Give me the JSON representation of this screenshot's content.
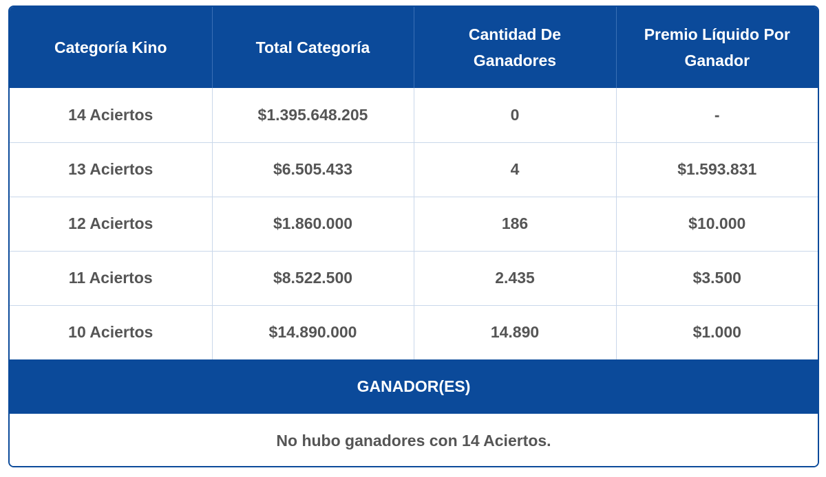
{
  "colors": {
    "header_bg": "#0b4a9a",
    "header_text": "#ffffff",
    "body_text": "#555555",
    "grid_line": "#c9d7ea"
  },
  "table": {
    "columns": [
      "Categoría Kino",
      "Total Categoría",
      "Cantidad De Ganadores",
      "Premio Líquido Por Ganador"
    ],
    "rows": [
      {
        "categoria": "14 Aciertos",
        "total": "$1.395.648.205",
        "cantidad": "0",
        "premio": "-"
      },
      {
        "categoria": "13 Aciertos",
        "total": "$6.505.433",
        "cantidad": "4",
        "premio": "$1.593.831"
      },
      {
        "categoria": "12 Aciertos",
        "total": "$1.860.000",
        "cantidad": "186",
        "premio": "$10.000"
      },
      {
        "categoria": "11 Aciertos",
        "total": "$8.522.500",
        "cantidad": "2.435",
        "premio": "$3.500"
      },
      {
        "categoria": "10 Aciertos",
        "total": "$14.890.000",
        "cantidad": "14.890",
        "premio": "$1.000"
      }
    ]
  },
  "winners": {
    "title": "GANADOR(ES)",
    "message": "No hubo ganadores con 14 Aciertos."
  }
}
